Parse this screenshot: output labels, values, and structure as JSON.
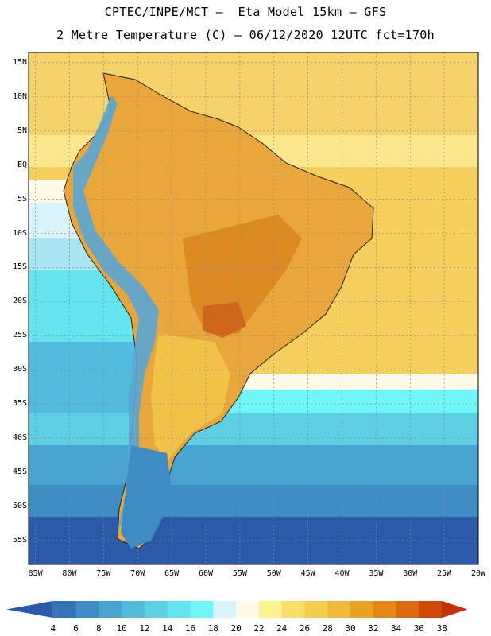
{
  "header": {
    "line1": "CPTEC/INPE/MCT –  Eta Model 15km – GFS",
    "line2": "2 Metre Temperature (C) – 06/12/2020 12UTC fct=170h"
  },
  "map": {
    "lat_labels": [
      "15N",
      "10N",
      "5N",
      "EQ",
      "5S",
      "10S",
      "15S",
      "20S",
      "25S",
      "30S",
      "35S",
      "40S",
      "45S",
      "50S",
      "55S"
    ],
    "lat_values": [
      15,
      10,
      5,
      0,
      -5,
      -10,
      -15,
      -20,
      -25,
      -30,
      -35,
      -40,
      -45,
      -50,
      -55
    ],
    "lon_labels": [
      "85W",
      "80W",
      "75W",
      "70W",
      "65W",
      "60W",
      "55W",
      "50W",
      "45W",
      "40W",
      "35W",
      "30W",
      "25W",
      "20W"
    ],
    "lon_values": [
      -85,
      -80,
      -75,
      -70,
      -65,
      -60,
      -55,
      -50,
      -45,
      -40,
      -35,
      -30,
      -25,
      -20
    ],
    "lon_range": [
      -86,
      -20
    ],
    "lat_range": [
      -58.5,
      16.5
    ]
  },
  "colorbar": {
    "labels": [
      "4",
      "6",
      "8",
      "10",
      "12",
      "14",
      "16",
      "18",
      "20",
      "22",
      "24",
      "26",
      "28",
      "30",
      "32",
      "34",
      "36",
      "38"
    ],
    "colors": [
      "#2a5aa8",
      "#3374b8",
      "#3d8cc4",
      "#47a4d0",
      "#52bcdc",
      "#5ed0e4",
      "#64e4ee",
      "#6ef6f8",
      "#d8f4fa",
      "#fffbe8",
      "#fcf290",
      "#f8de68",
      "#f4cc50",
      "#eeb838",
      "#e8a21e",
      "#e48818",
      "#dc6a10",
      "#d04808",
      "#c43008"
    ]
  }
}
